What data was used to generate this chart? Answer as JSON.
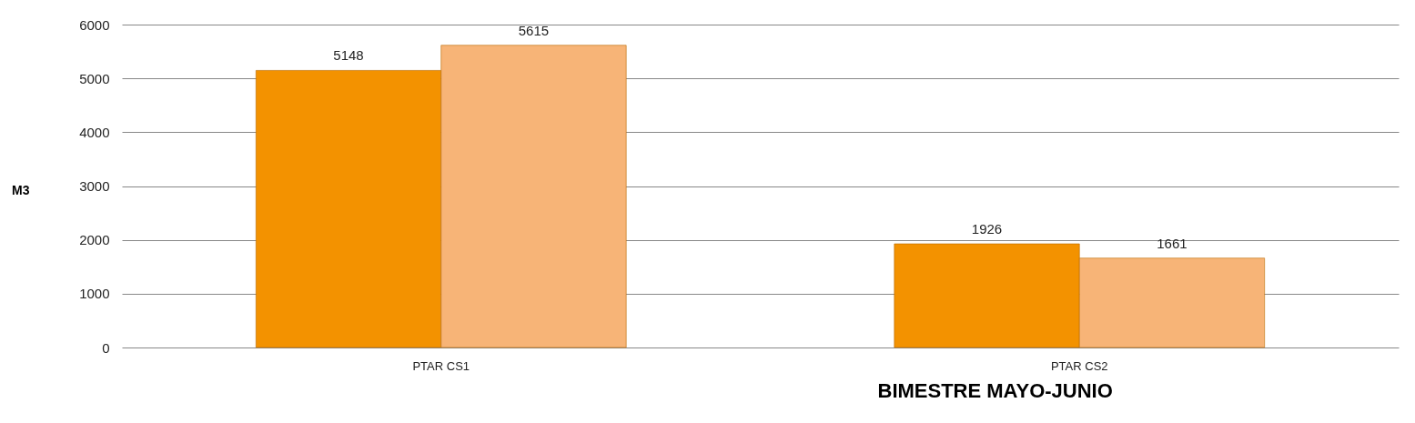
{
  "chart_data": {
    "type": "bar",
    "xlabel": "BIMESTRE MAYO-JUNIO",
    "ylabel": "M3",
    "categories": [
      "PTAR CS1",
      "PTAR CS2"
    ],
    "series": [
      {
        "color": "#f39200",
        "values": [
          5148,
          1926
        ]
      },
      {
        "color": "#f7b477",
        "values": [
          5615,
          1661
        ]
      }
    ],
    "ylim": [
      0,
      6000
    ],
    "yticks": [
      0,
      1000,
      2000,
      3000,
      4000,
      5000,
      6000
    ],
    "grid": "y",
    "data_labels": true,
    "legend": false
  }
}
